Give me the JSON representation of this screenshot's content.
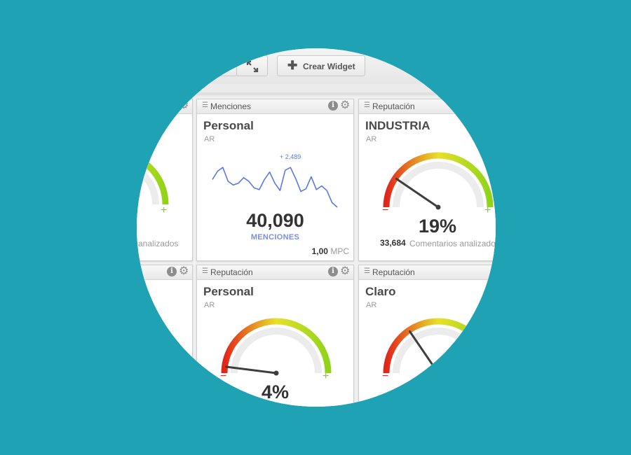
{
  "toolbar": {
    "create_widget_label": "Crear Widget",
    "create_widget_icon": "plus-icon",
    "expand_icon": "expand-icon"
  },
  "widgets": [
    {
      "header": "",
      "comments_label": "analizados"
    },
    {
      "header": "Menciones",
      "brand": "Personal",
      "country": "AR",
      "peak_label": "+ 2,489",
      "total": "40,090",
      "total_label": "MENCIONES",
      "mpc_value": "1,00",
      "mpc_unit": "MPC",
      "sparkline": [
        20,
        11,
        7,
        22,
        26,
        24,
        18,
        22,
        29,
        31,
        20,
        12,
        24,
        32,
        10,
        7,
        19,
        33,
        30,
        17,
        31,
        27,
        32,
        45,
        50
      ]
    },
    {
      "header": "Reputación",
      "brand": "INDUSTRIA",
      "country": "AR",
      "percent": "19%",
      "percent_value": 19,
      "count": "33,684",
      "comments_label": "Comentarios analizados",
      "minus": "−",
      "plus": "+"
    },
    {
      "header": ""
    },
    {
      "header": "Reputación",
      "brand": "Personal",
      "country": "AR",
      "percent": "4%",
      "percent_value": 4,
      "minus": "−",
      "plus": "+"
    },
    {
      "header": "Reputación",
      "brand": "Claro",
      "country": "AR",
      "percent_value": 31,
      "minus": "−",
      "plus": "+"
    }
  ],
  "colors": {
    "background": "#1fa3b4",
    "sparkline": "#5b78e6",
    "gauge_red": "#e1251b",
    "gauge_yellow": "#e8e02a",
    "gauge_green": "#8fd419"
  }
}
